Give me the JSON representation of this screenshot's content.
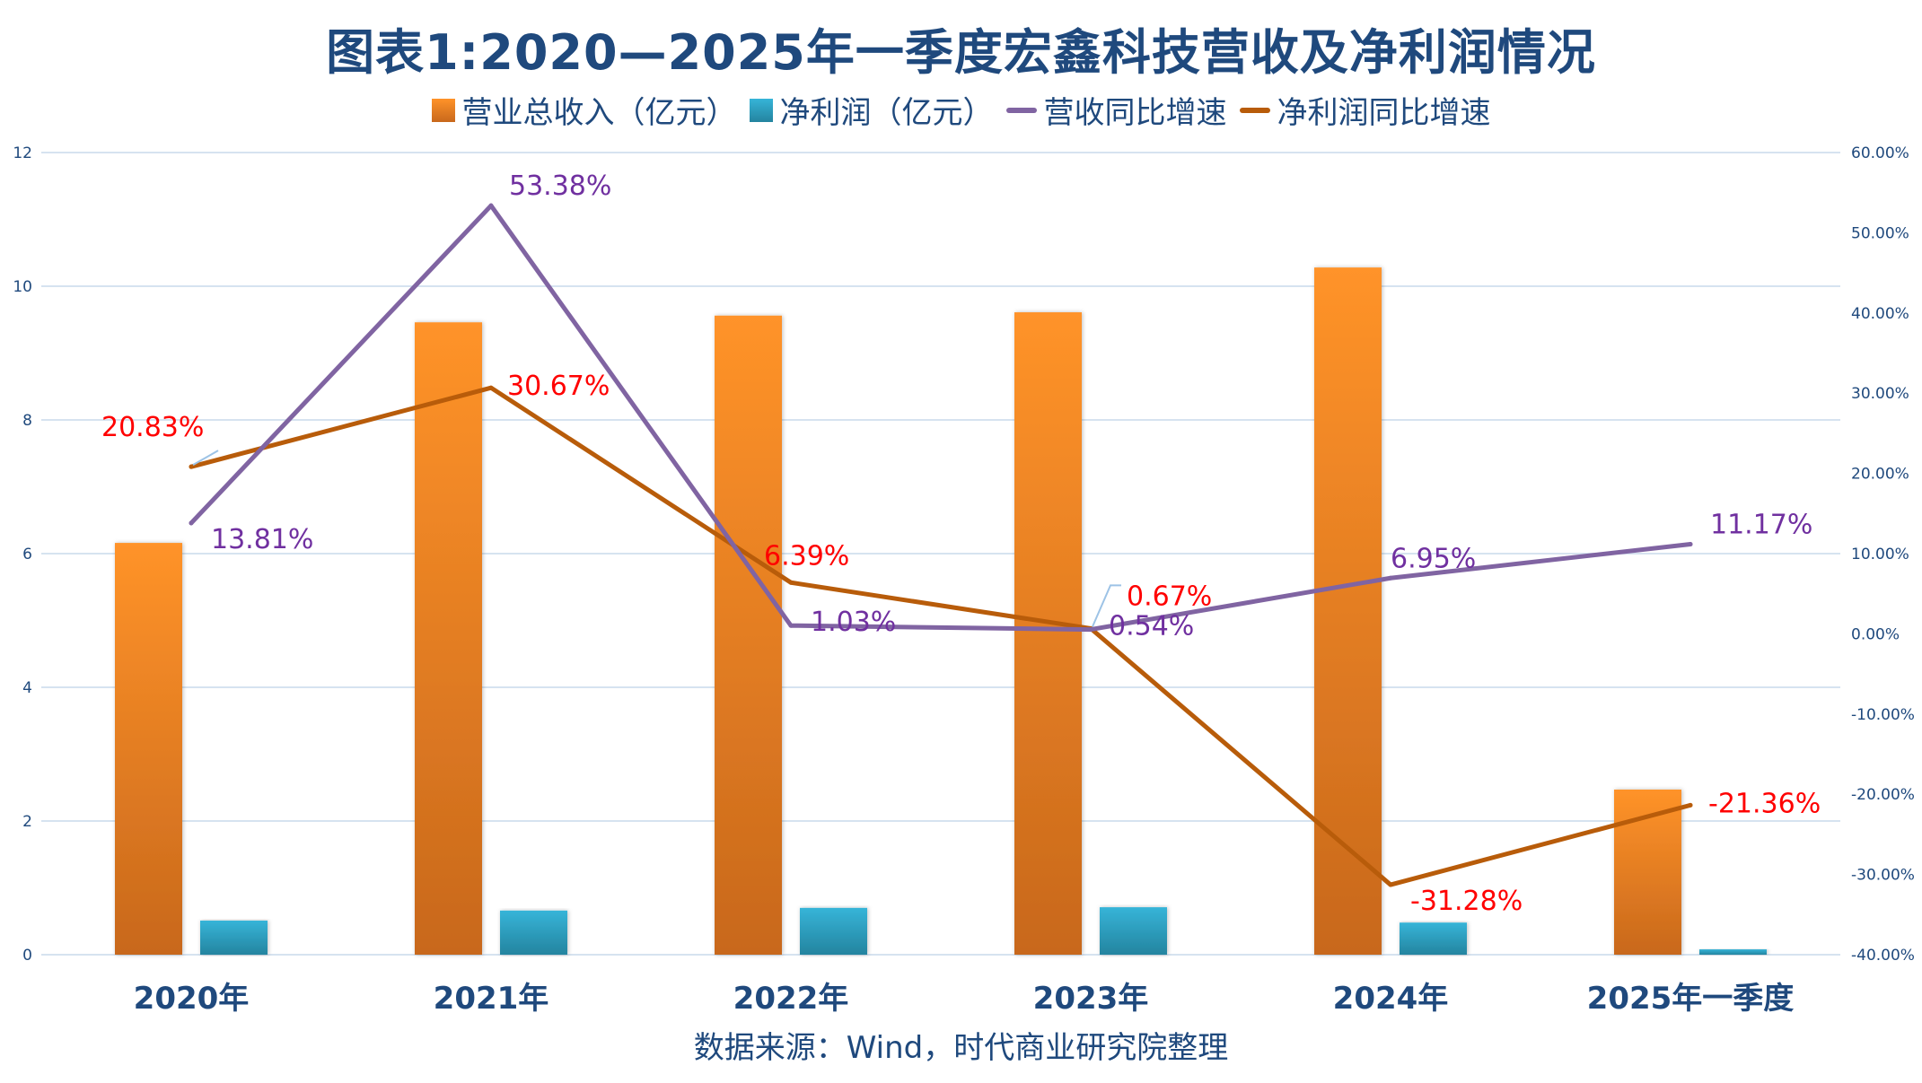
{
  "title": "图表1:2020—2025年一季度宏鑫科技营收及净利润情况",
  "footer": "数据来源：Wind，时代商业研究院整理",
  "colors": {
    "revenue_top": "#FF9329",
    "revenue_bottom": "#C8681C",
    "profit_top": "#36B4D8",
    "profit_bottom": "#24849F",
    "revenue_growth_line": "#8064A2",
    "profit_growth_line": "#B85C0A",
    "revenue_growth_label": "#7030A0",
    "profit_growth_label": "#FF0000",
    "axis_text": "#1F497D",
    "grid": "#D6E3F0",
    "leader": "#9DC3E6"
  },
  "chart_data": {
    "type": "bar",
    "title": "图表1:2020—2025年一季度宏鑫科技营收及净利润情况",
    "categories": [
      "2020年",
      "2021年",
      "2022年",
      "2023年",
      "2024年",
      "2025年一季度"
    ],
    "series": [
      {
        "name": "营业总收入（亿元）",
        "type": "bar",
        "axis": "left",
        "values": [
          6.16,
          9.46,
          9.56,
          9.61,
          10.28,
          2.47
        ]
      },
      {
        "name": "净利润（亿元）",
        "type": "bar",
        "axis": "left",
        "values": [
          0.51,
          0.66,
          0.7,
          0.71,
          0.48,
          0.08
        ]
      },
      {
        "name": "营收同比增速",
        "type": "line",
        "axis": "right",
        "values": [
          13.81,
          53.38,
          1.03,
          0.54,
          6.95,
          11.17
        ],
        "labels": [
          "13.81%",
          "53.38%",
          "1.03%",
          "0.54%",
          "6.95%",
          "11.17%"
        ]
      },
      {
        "name": "净利润同比增速",
        "type": "line",
        "axis": "right",
        "values": [
          20.83,
          30.67,
          6.39,
          0.67,
          -31.28,
          -21.36
        ],
        "labels": [
          "20.83%",
          "30.67%",
          "6.39%",
          "0.67%",
          "-31.28%",
          "-21.36%"
        ]
      }
    ],
    "y_left": {
      "lim": [
        0,
        12
      ],
      "ticks": [
        0,
        2,
        4,
        6,
        8,
        10,
        12
      ],
      "tick_labels": [
        "0",
        "2",
        "4",
        "6",
        "8",
        "10",
        "12"
      ]
    },
    "y_right": {
      "lim": [
        -40,
        60
      ],
      "ticks": [
        -40,
        -30,
        -20,
        -10,
        0,
        10,
        20,
        30,
        40,
        50,
        60
      ],
      "tick_labels": [
        "-40.00%",
        "-30.00%",
        "-20.00%",
        "-10.00%",
        "0.00%",
        "10.00%",
        "20.00%",
        "30.00%",
        "40.00%",
        "50.00%",
        "60.00%"
      ]
    },
    "xlabel": "",
    "ylabel": "",
    "grid": true,
    "legend": "top"
  }
}
